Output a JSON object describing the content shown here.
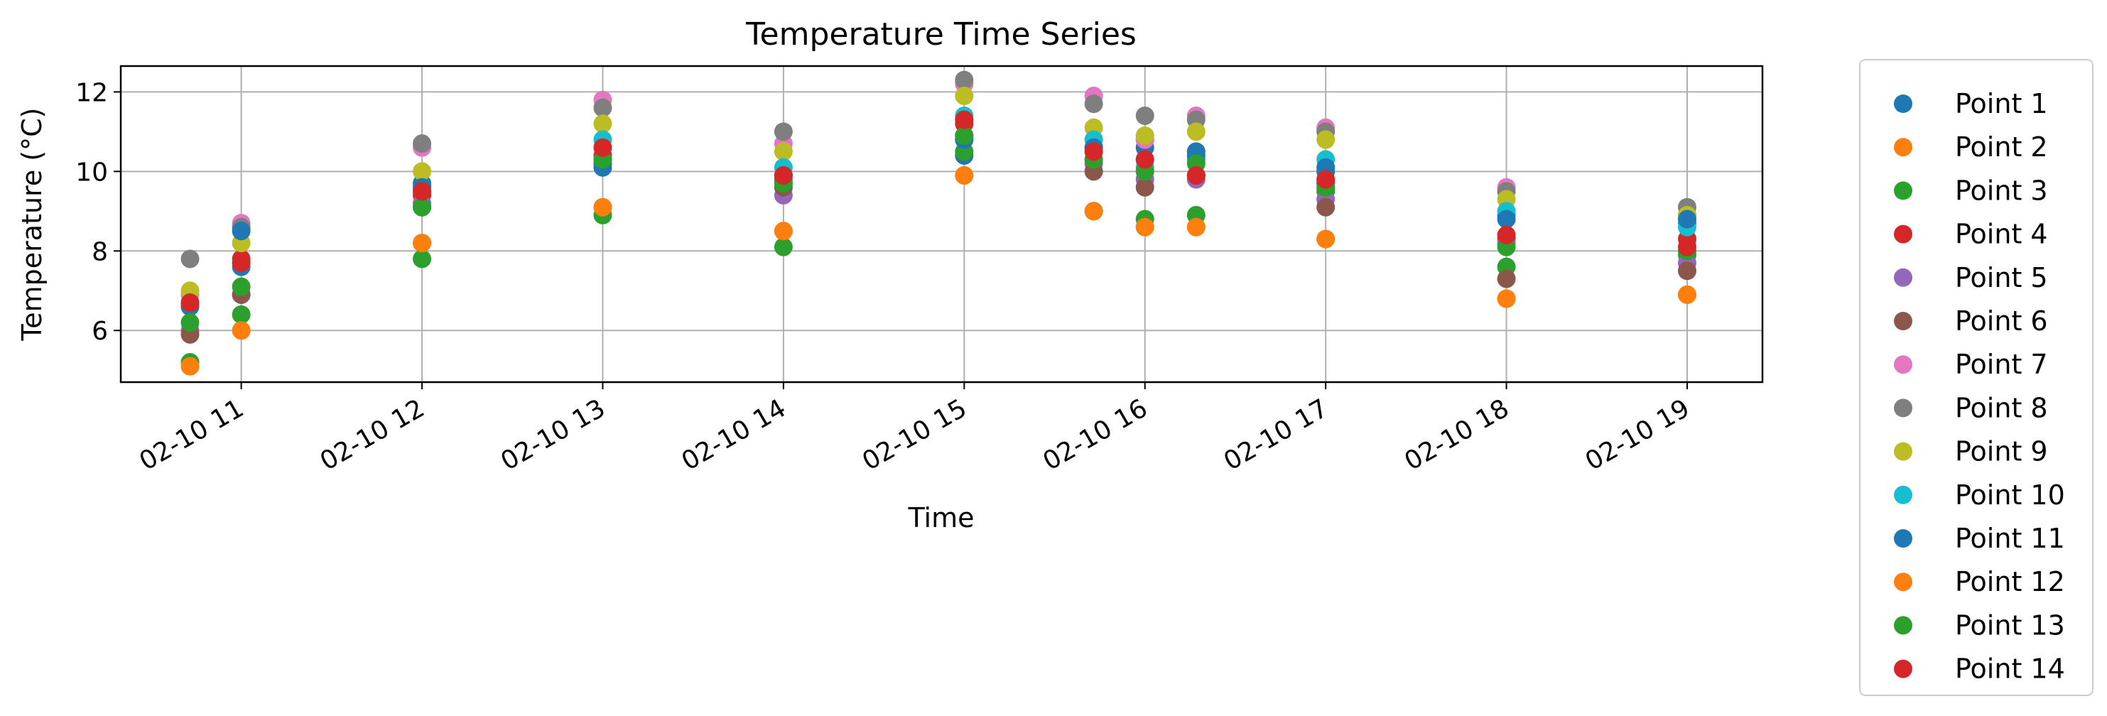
{
  "chart_data": {
    "type": "scatter",
    "title": "Temperature Time Series",
    "xlabel": "Time",
    "ylabel": "Temperature (°C)",
    "xlim": [
      "02-10 10:20",
      "02-10 19:25"
    ],
    "ylim": [
      4.7,
      12.65
    ],
    "x_ticks": [
      "02-10 11",
      "02-10 12",
      "02-10 13",
      "02-10 14",
      "02-10 15",
      "02-10 16",
      "02-10 17",
      "02-10 18",
      "02-10 19"
    ],
    "y_ticks": [
      6,
      8,
      10,
      12
    ],
    "grid": true,
    "legend_position": "outside right",
    "times": [
      "02-10 10:43",
      "02-10 11:00",
      "02-10 12:00",
      "02-10 13:00",
      "02-10 14:00",
      "02-10 15:00",
      "02-10 15:43",
      "02-10 16:00",
      "02-10 16:17",
      "02-10 17:00",
      "02-10 18:00",
      "02-10 19:00"
    ],
    "series": [
      {
        "name": "Point 1",
        "color": "#1f77b4",
        "values": [
          6.7,
          7.6,
          9.7,
          10.1,
          9.8,
          10.4,
          10.6,
          10.6,
          10.5,
          10.0,
          8.9,
          8.7
        ]
      },
      {
        "name": "Point 2",
        "color": "#ff7f0e",
        "values": [
          5.1,
          6.0,
          8.2,
          9.1,
          8.5,
          9.9,
          9.0,
          8.6,
          8.6,
          8.3,
          6.8,
          6.9
        ]
      },
      {
        "name": "Point 3",
        "color": "#2ca02c",
        "values": [
          5.2,
          6.4,
          7.8,
          8.9,
          8.1,
          10.5,
          9.0,
          8.8,
          8.9,
          9.5,
          7.6,
          7.9
        ]
      },
      {
        "name": "Point 4",
        "color": "#d62728",
        "values": [
          6.6,
          7.8,
          9.4,
          10.4,
          9.9,
          11.2,
          10.3,
          10.8,
          9.9,
          9.7,
          8.3,
          8.3
        ]
      },
      {
        "name": "Point 5",
        "color": "#9467bd",
        "values": [
          6.0,
          6.9,
          9.2,
          10.2,
          9.4,
          10.8,
          10.2,
          9.8,
          9.8,
          9.3,
          8.2,
          7.7
        ]
      },
      {
        "name": "Point 6",
        "color": "#8c564b",
        "values": [
          5.9,
          6.9,
          9.1,
          10.3,
          9.6,
          10.9,
          10.0,
          9.6,
          9.9,
          9.1,
          7.3,
          7.5
        ]
      },
      {
        "name": "Point 7",
        "color": "#e377c2",
        "values": [
          6.9,
          8.7,
          10.6,
          11.8,
          10.7,
          12.2,
          11.9,
          10.8,
          11.4,
          11.1,
          9.6,
          8.9
        ]
      },
      {
        "name": "Point 8",
        "color": "#7f7f7f",
        "values": [
          7.8,
          8.6,
          10.7,
          11.6,
          11.0,
          12.3,
          11.7,
          11.4,
          11.3,
          11.0,
          9.5,
          9.1
        ]
      },
      {
        "name": "Point 9",
        "color": "#bcbd22",
        "values": [
          7.0,
          8.2,
          10.0,
          11.2,
          10.5,
          11.9,
          11.1,
          10.9,
          11.0,
          10.8,
          9.3,
          8.9
        ]
      },
      {
        "name": "Point 10",
        "color": "#17becf",
        "values": [
          6.7,
          7.7,
          9.6,
          10.8,
          10.1,
          11.4,
          10.8,
          10.1,
          10.3,
          10.3,
          9.0,
          8.6
        ]
      },
      {
        "name": "Point 11",
        "color": "#1f77b4",
        "values": [
          6.6,
          8.5,
          9.6,
          10.2,
          9.7,
          10.8,
          10.6,
          10.3,
          10.4,
          10.1,
          8.8,
          8.8
        ]
      },
      {
        "name": "Point 12",
        "color": "#ff7f0e",
        "values": [
          5.1,
          6.0,
          8.2,
          9.1,
          8.5,
          9.9,
          9.0,
          8.6,
          8.6,
          8.3,
          6.8,
          6.9
        ]
      },
      {
        "name": "Point 13",
        "color": "#2ca02c",
        "values": [
          6.2,
          7.1,
          9.1,
          10.3,
          9.7,
          10.9,
          10.3,
          10.0,
          10.2,
          9.6,
          8.1,
          8.0
        ]
      },
      {
        "name": "Point 14",
        "color": "#d62728",
        "values": [
          6.7,
          7.7,
          9.5,
          10.6,
          9.9,
          11.3,
          10.5,
          10.3,
          9.9,
          9.8,
          8.4,
          8.1
        ]
      }
    ]
  }
}
